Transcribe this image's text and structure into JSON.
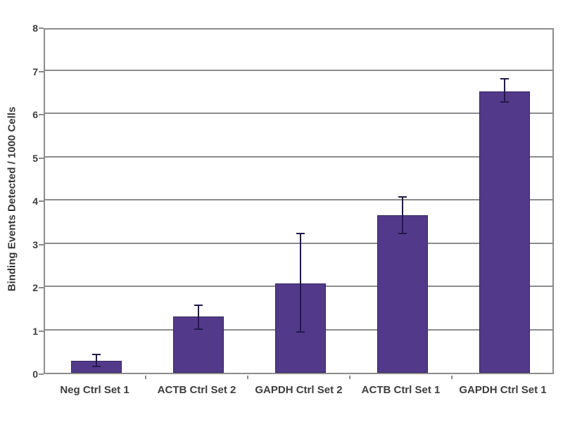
{
  "chart_data": {
    "type": "bar",
    "title": "",
    "categories": [
      "Neg Ctrl Set 1",
      "ACTB Ctrl Set 2",
      "GAPDH Ctrl Set 2",
      "ACTB Ctrl Set 1",
      "GAPDH Ctrl Set 1"
    ],
    "values": [
      0.27,
      1.3,
      2.07,
      3.65,
      6.5
    ],
    "error_plus": [
      0.17,
      0.27,
      1.17,
      0.43,
      0.31
    ],
    "error_minus": [
      0.14,
      0.3,
      1.14,
      0.44,
      0.26
    ],
    "xlabel": "",
    "ylabel": "Binding Events Detected / 1000 Cells",
    "ylim": [
      0,
      8
    ],
    "ytick_step": 1,
    "ytick_labels": [
      "0",
      "1",
      "2",
      "3",
      "4",
      "5",
      "6",
      "7",
      "8"
    ],
    "grid": true,
    "legend_position": "none",
    "bar_color": "#53398a",
    "bar_border_color": "#32265f",
    "error_bar_color": "#221a4a",
    "grid_color": "#8c8c8c",
    "axis_color": "#8c8c8c",
    "text_color": "#3d3d3d",
    "background_color": "#ffffff"
  }
}
